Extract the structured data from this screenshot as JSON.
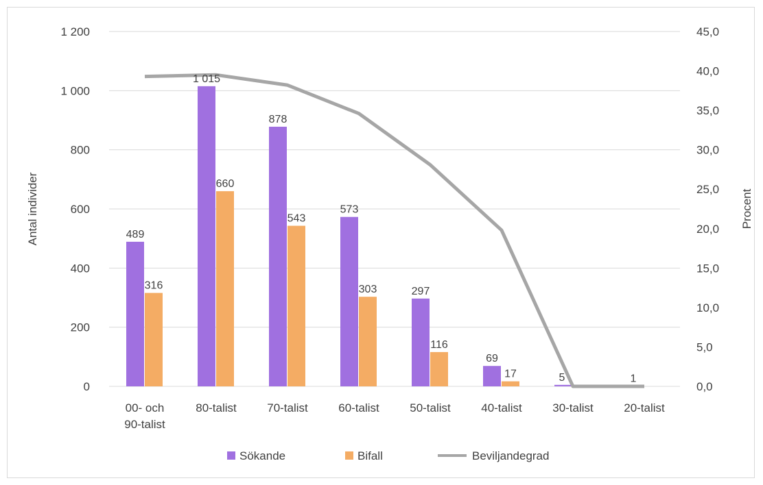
{
  "chart_data": {
    "type": "bar",
    "categories": [
      [
        "00- och",
        "90-talist"
      ],
      [
        "80-talist"
      ],
      [
        "70-talist"
      ],
      [
        "60-talist"
      ],
      [
        "50-talist"
      ],
      [
        "40-talist"
      ],
      [
        "30-talist"
      ],
      [
        "20-talist"
      ]
    ],
    "series": [
      {
        "name": "Sökande",
        "kind": "bar",
        "axis": "left",
        "color": "#a070e0",
        "values": [
          489,
          1015,
          878,
          573,
          297,
          69,
          5,
          1
        ],
        "labels": [
          "489",
          "1 015",
          "878",
          "573",
          "297",
          "69",
          "5",
          "1"
        ]
      },
      {
        "name": "Bifall",
        "kind": "bar",
        "axis": "left",
        "color": "#f4ac64",
        "values": [
          316,
          660,
          543,
          303,
          116,
          17,
          0,
          0
        ],
        "labels": [
          "316",
          "660",
          "543",
          "303",
          "116",
          "17",
          "",
          ""
        ]
      },
      {
        "name": "Beviljandegrad",
        "kind": "line",
        "axis": "right",
        "color": "#a6a6a6",
        "values": [
          39.3,
          39.5,
          38.2,
          34.6,
          28.1,
          19.8,
          0.0,
          0.0
        ]
      }
    ],
    "yaxis_left": {
      "label": "Antal individer",
      "min": 0,
      "max": 1200,
      "ticks": [
        0,
        200,
        400,
        600,
        800,
        1000,
        1200
      ],
      "tick_labels": [
        "0",
        "200",
        "400",
        "600",
        "800",
        "1 000",
        "1 200"
      ]
    },
    "yaxis_right": {
      "label": "Procent",
      "min": 0,
      "max": 45,
      "ticks": [
        0,
        5,
        10,
        15,
        20,
        25,
        30,
        35,
        40,
        45
      ],
      "tick_labels": [
        "0,0",
        "5,0",
        "10,0",
        "15,0",
        "20,0",
        "25,0",
        "30,0",
        "35,0",
        "40,0",
        "45,0"
      ]
    },
    "grid": true,
    "legend_position": "bottom",
    "legend": [
      "Sökande",
      "Bifall",
      "Beviljandegrad"
    ]
  }
}
